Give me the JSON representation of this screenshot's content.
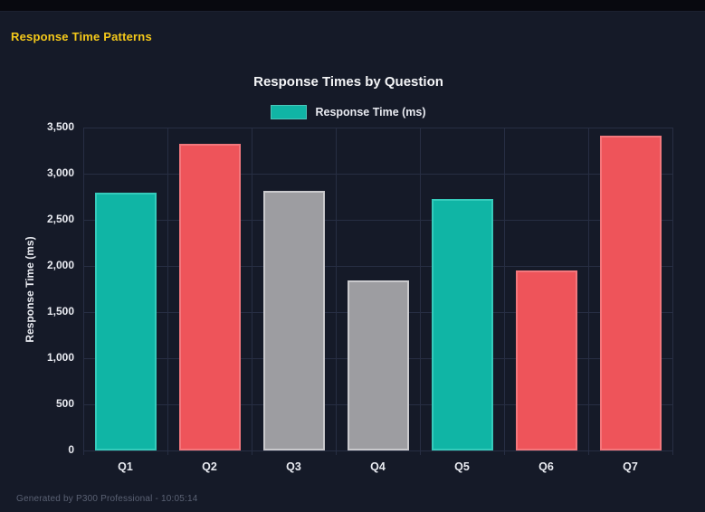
{
  "page": {
    "title": "Response Time Patterns",
    "footer": "Generated by P300 Professional - 10:05:14"
  },
  "colors": {
    "page_background": "#151a28",
    "top_bar": "#08090f",
    "page_title": "#F5C91A",
    "grid": "#272e43",
    "tick_text": "#E9EBF1",
    "teal": "#10B5A5",
    "red": "#EE545A",
    "gray": "#9D9DA1",
    "footer_text": "#5A6173"
  },
  "chart_data": {
    "type": "bar",
    "title": "Response Times by Question",
    "legend": [
      {
        "label": "Response Time (ms)",
        "color": "#10B5A5"
      }
    ],
    "legend_position": "top",
    "categories": [
      "Q1",
      "Q2",
      "Q3",
      "Q4",
      "Q5",
      "Q6",
      "Q7"
    ],
    "values": [
      2790,
      3320,
      2810,
      1840,
      2730,
      1950,
      3410
    ],
    "bar_colors": [
      "#10B5A5",
      "#EE545A",
      "#9D9DA1",
      "#9D9DA1",
      "#10B5A5",
      "#EE545A",
      "#EE545A"
    ],
    "bar_border_colors": [
      "#35CBBB",
      "#F3777C",
      "#C9C9CC",
      "#C9C9CC",
      "#35CBBB",
      "#F3777C",
      "#F3777C"
    ],
    "xlabel": "",
    "ylabel": "Response Time (ms)",
    "ylim": [
      0,
      3500
    ],
    "ytick_step": 500,
    "grid": true
  }
}
